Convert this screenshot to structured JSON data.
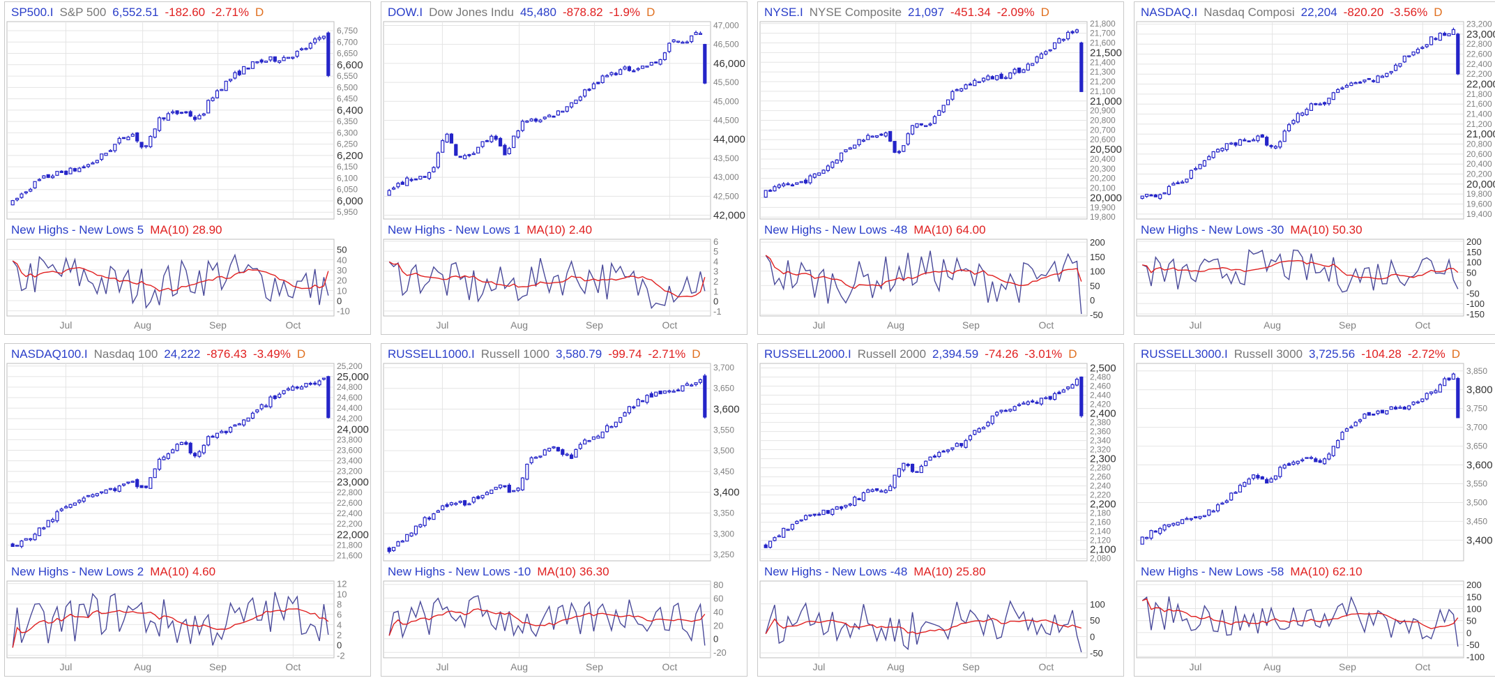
{
  "colors": {
    "candle": "#2424c8",
    "ind_line": "#4a4a9a",
    "ma_line": "#e02020",
    "grid": "#e4e4e4",
    "axis_text": "#808080",
    "axis_text_major": "#333333"
  },
  "panels": [
    {
      "symbol": "SP500.I",
      "name": "S&P 500",
      "price": "6,552.51",
      "change": "-182.60",
      "pct": "-2.71%",
      "period": "D",
      "ind_label": "New Highs - New Lows",
      "ind_value": "5",
      "ma_label": "MA(10)",
      "ma_value": "28.90"
    },
    {
      "symbol": "DOW.I",
      "name": "Dow Jones Indu",
      "price": "45,480",
      "change": "-878.82",
      "pct": "-1.9%",
      "period": "D",
      "ind_label": "New Highs - New Lows",
      "ind_value": "1",
      "ma_label": "MA(10)",
      "ma_value": "2.40"
    },
    {
      "symbol": "NYSE.I",
      "name": "NYSE Composite",
      "price": "21,097",
      "change": "-451.34",
      "pct": "-2.09%",
      "period": "D",
      "ind_label": "New Highs - New Lows",
      "ind_value": "-48",
      "ma_label": "MA(10)",
      "ma_value": "64.00"
    },
    {
      "symbol": "NASDAQ.I",
      "name": "Nasdaq Composi",
      "price": "22,204",
      "change": "-820.20",
      "pct": "-3.56%",
      "period": "D",
      "ind_label": "New Highs - New Lows",
      "ind_value": "-30",
      "ma_label": "MA(10)",
      "ma_value": "50.30"
    },
    {
      "symbol": "NASDAQ100.I",
      "name": "Nasdaq 100",
      "price": "24,222",
      "change": "-876.43",
      "pct": "-3.49%",
      "period": "D",
      "ind_label": "New Highs - New Lows",
      "ind_value": "2",
      "ma_label": "MA(10)",
      "ma_value": "4.60"
    },
    {
      "symbol": "RUSSELL1000.I",
      "name": "Russell 1000",
      "price": "3,580.79",
      "change": "-99.74",
      "pct": "-2.71%",
      "period": "D",
      "ind_label": "New Highs - New Lows",
      "ind_value": "-10",
      "ma_label": "MA(10)",
      "ma_value": "36.30"
    },
    {
      "symbol": "RUSSELL2000.I",
      "name": "Russell 2000",
      "price": "2,394.59",
      "change": "-74.26",
      "pct": "-3.01%",
      "period": "D",
      "ind_label": "New Highs - New Lows",
      "ind_value": "-48",
      "ma_label": "MA(10)",
      "ma_value": "25.80"
    },
    {
      "symbol": "RUSSELL3000.I",
      "name": "Russell 3000",
      "price": "3,725.56",
      "change": "-104.28",
      "pct": "-2.72%",
      "period": "D",
      "ind_label": "New Highs - New Lows",
      "ind_value": "-58",
      "ma_label": "MA(10)",
      "ma_value": "62.10"
    }
  ],
  "chart_data": [
    {
      "type": "candlestick",
      "title": "SP500.I S&P 500",
      "x_ticks": [
        "Jul",
        "Aug",
        "Sep",
        "Oct"
      ],
      "ylim": [
        5920,
        6790
      ],
      "start": 5990,
      "end": 6750,
      "last_close": 6552.51,
      "last_open": 6740,
      "dips": [
        [
          0.42,
          120
        ],
        [
          0.59,
          60
        ]
      ],
      "y_ticks_major": [
        "6,600",
        "6,400",
        "6,200",
        "6,000"
      ],
      "y_ticks_minor": [
        "6,750",
        "6,700",
        "6,650",
        "6,550",
        "6,500",
        "6,450",
        "6,350",
        "6,300",
        "6,250",
        "6,150",
        "6,100",
        "6,050",
        "5,950"
      ],
      "indicator": {
        "ylim": [
          -15,
          60
        ],
        "y_ticks": [
          "50",
          "40",
          "30",
          "20",
          "10",
          "0",
          "-10"
        ],
        "base": 20,
        "amp": 16,
        "last": 5,
        "ma_last": 28.9
      }
    },
    {
      "type": "candlestick",
      "title": "DOW.I Dow Jones Indu",
      "x_ticks": [
        "Jul",
        "Aug",
        "Sep",
        "Oct"
      ],
      "ylim": [
        41900,
        47100
      ],
      "start": 42500,
      "end": 46800,
      "last_close": 45480,
      "last_open": 46500,
      "dips": [
        [
          0.18,
          -900
        ],
        [
          0.37,
          700
        ],
        [
          0.9,
          -300
        ]
      ],
      "y_ticks_major": [
        "46,000",
        "44,000",
        "42,000"
      ],
      "y_ticks_minor": [
        "47,000",
        "46,500",
        "45,500",
        "45,000",
        "44,500",
        "43,500",
        "43,000",
        "42,500"
      ],
      "indicator": {
        "ylim": [
          -1.5,
          6.2
        ],
        "y_ticks": [
          "6",
          "5",
          "4",
          "3",
          "2",
          "1",
          "0",
          "-1"
        ],
        "base": 2,
        "amp": 1.6,
        "last": 1,
        "ma_last": 2.4
      }
    },
    {
      "type": "candlestick",
      "title": "NYSE.I NYSE Composite",
      "x_ticks": [
        "Jul",
        "Aug",
        "Sep",
        "Oct"
      ],
      "ylim": [
        19780,
        21820
      ],
      "start": 20000,
      "end": 21700,
      "last_close": 21097,
      "last_open": 21600,
      "dips": [
        [
          0.42,
          260
        ],
        [
          0.52,
          120
        ]
      ],
      "y_ticks_major": [
        "21,500",
        "21,000",
        "20,500",
        "20,000"
      ],
      "y_ticks_minor": [
        "21,800",
        "21,700",
        "21,600",
        "21,400",
        "21,300",
        "21,200",
        "21,100",
        "20,900",
        "20,800",
        "20,700",
        "20,600",
        "20,400",
        "20,300",
        "20,200",
        "20,100",
        "19,900",
        "19,800"
      ],
      "indicator": {
        "ylim": [
          -55,
          210
        ],
        "y_ticks": [
          "200",
          "150",
          "100",
          "50",
          "0",
          "-50"
        ],
        "base": 80,
        "amp": 55,
        "last": -48,
        "ma_last": 64
      }
    },
    {
      "type": "candlestick",
      "title": "NASDAQ.I Nasdaq Composi",
      "x_ticks": [
        "Jul",
        "Aug",
        "Sep",
        "Oct"
      ],
      "ylim": [
        19300,
        23250
      ],
      "start": 19700,
      "end": 23050,
      "last_close": 22204,
      "last_open": 23000,
      "dips": [
        [
          0.42,
          350
        ],
        [
          0.58,
          200
        ]
      ],
      "y_ticks_major": [
        "23,000",
        "22,000",
        "21,000",
        "20,000"
      ],
      "y_ticks_minor": [
        "23,200",
        "22,800",
        "22,600",
        "22,400",
        "22,200",
        "21,800",
        "21,600",
        "21,400",
        "21,200",
        "20,800",
        "20,600",
        "20,400",
        "20,200",
        "19,800",
        "19,600",
        "19,400"
      ],
      "indicator": {
        "ylim": [
          -160,
          210
        ],
        "y_ticks": [
          "200",
          "150",
          "100",
          "50",
          "0",
          "-50",
          "-100",
          "-150"
        ],
        "base": 60,
        "amp": 65,
        "last": -30,
        "ma_last": 50.3
      }
    },
    {
      "type": "candlestick",
      "title": "NASDAQ100.I Nasdaq 100",
      "x_ticks": [
        "Jul",
        "Aug",
        "Sep",
        "Oct"
      ],
      "ylim": [
        21500,
        25250
      ],
      "start": 21850,
      "end": 25050,
      "last_close": 24222,
      "last_open": 25000,
      "dips": [
        [
          0.42,
          300
        ],
        [
          0.58,
          300
        ]
      ],
      "y_ticks_major": [
        "25,000",
        "24,000",
        "23,000",
        "22,000"
      ],
      "y_ticks_minor": [
        "25,200",
        "24,800",
        "24,600",
        "24,400",
        "24,200",
        "23,800",
        "23,600",
        "23,400",
        "23,200",
        "22,800",
        "22,600",
        "22,400",
        "22,200",
        "21,800",
        "21,600"
      ],
      "indicator": {
        "ylim": [
          -2.5,
          12.5
        ],
        "y_ticks": [
          "12",
          "10",
          "8",
          "6",
          "4",
          "2",
          "0",
          "-2"
        ],
        "base": 5,
        "amp": 3.5,
        "last": 2,
        "ma_last": 4.6
      }
    },
    {
      "type": "candlestick",
      "title": "RUSSELL1000.I Russell 1000",
      "x_ticks": [
        "Jul",
        "Aug",
        "Sep",
        "Oct"
      ],
      "ylim": [
        3235,
        3710
      ],
      "start": 3270,
      "end": 3690,
      "last_close": 3580.79,
      "last_open": 3680,
      "dips": [
        [
          0.4,
          40
        ],
        [
          0.57,
          30
        ]
      ],
      "y_ticks_major": [
        "3,600",
        "3,400"
      ],
      "y_ticks_minor": [
        "3,700",
        "3,650",
        "3,550",
        "3,500",
        "3,450",
        "3,350",
        "3,300",
        "3,250"
      ],
      "indicator": {
        "ylim": [
          -28,
          85
        ],
        "y_ticks": [
          "80",
          "60",
          "40",
          "20",
          "0",
          "-20"
        ],
        "base": 30,
        "amp": 22,
        "last": -10,
        "ma_last": 36.3
      }
    },
    {
      "type": "candlestick",
      "title": "RUSSELL2000.I Russell 2000",
      "x_ticks": [
        "Jul",
        "Aug",
        "Sep",
        "Oct"
      ],
      "ylim": [
        2075,
        2510
      ],
      "start": 2110,
      "end": 2480,
      "last_close": 2394.59,
      "last_open": 2480,
      "dips": [
        [
          0.38,
          40
        ],
        [
          0.48,
          30
        ]
      ],
      "y_ticks_major": [
        "2,500",
        "2,400",
        "2,300",
        "2,200",
        "2,100"
      ],
      "y_ticks_minor": [
        "2,480",
        "2,460",
        "2,440",
        "2,420",
        "2,380",
        "2,360",
        "2,340",
        "2,320",
        "2,280",
        "2,260",
        "2,240",
        "2,220",
        "2,180",
        "2,160",
        "2,140",
        "2,120",
        "2,080"
      ],
      "indicator": {
        "ylim": [
          -65,
          170
        ],
        "y_ticks": [
          "100",
          "50",
          "0",
          "-50"
        ],
        "base": 40,
        "amp": 50,
        "last": -48,
        "ma_last": 25.8
      }
    },
    {
      "type": "candlestick",
      "title": "RUSSELL3000.I Russell 3000",
      "x_ticks": [
        "Jul",
        "Aug",
        "Sep",
        "Oct"
      ],
      "ylim": [
        3345,
        3870
      ],
      "start": 3390,
      "end": 3840,
      "last_close": 3725.56,
      "last_open": 3830,
      "dips": [
        [
          0.4,
          40
        ],
        [
          0.57,
          30
        ]
      ],
      "y_ticks_major": [
        "3,800",
        "3,600",
        "3,400"
      ],
      "y_ticks_minor": [
        "3,850",
        "3,750",
        "3,700",
        "3,650",
        "3,550",
        "3,500",
        "3,450"
      ],
      "indicator": {
        "ylim": [
          -105,
          215
        ],
        "y_ticks": [
          "200",
          "150",
          "100",
          "50",
          "0",
          "-50",
          "-100"
        ],
        "base": 60,
        "amp": 55,
        "last": -58,
        "ma_last": 62.1
      }
    }
  ]
}
